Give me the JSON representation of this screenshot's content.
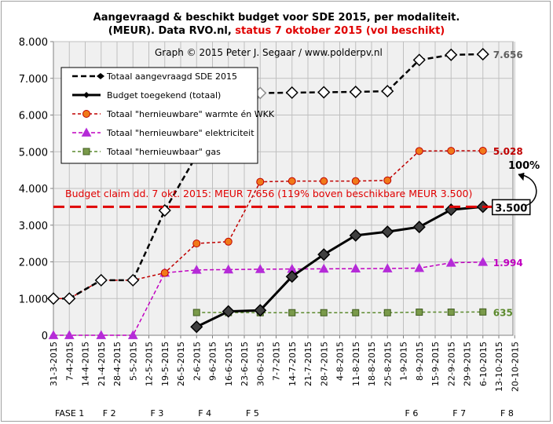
{
  "title": {
    "line1": "Aangevraagd & beschikt budget voor SDE 2015, per modaliteit.",
    "line2_prefix": "(MEUR).  Data RVO.nl,  ",
    "line2_status": "status 7 oktober 2015  (vol beschikt)"
  },
  "credit": "Graph  © 2015  Peter J. Segaar  /  www.polderpv.nl",
  "budget_claim_note": "Budget claim  dd. 7 okt. 2015:  MEUR 7.656  (119% boven beschikbare MEUR  3.500)",
  "percent_label": "100%",
  "colors": {
    "aangevraagd": "#000000",
    "toegekend": "#000000",
    "warmte": "#c00000",
    "warmte_fill": "#f07a1a",
    "elektriciteit": "#c000c0",
    "gas": "#5c8a2e",
    "gas_fill": "#7a9a4a",
    "claim_line": "#e00000",
    "gridline": "#bfbfbf",
    "plot_bg": "#f0f0f0"
  },
  "chart_data": {
    "type": "line",
    "ylim": [
      0,
      8000
    ],
    "yticks": [
      0,
      1000,
      2000,
      3000,
      4000,
      5000,
      6000,
      7000,
      8000
    ],
    "ytick_labels": [
      "0",
      "1.000",
      "2.000",
      "3.000",
      "4.000",
      "5.000",
      "6.000",
      "7.000",
      "8.000"
    ],
    "x_dates": [
      "2015-03-31",
      "2015-04-07",
      "2015-04-14",
      "2015-04-21",
      "2015-04-28",
      "2015-05-05",
      "2015-05-12",
      "2015-05-19",
      "2015-05-26",
      "2015-06-02",
      "2015-06-09",
      "2015-06-16",
      "2015-06-23",
      "2015-06-30",
      "2015-07-07",
      "2015-07-14",
      "2015-07-21",
      "2015-07-28",
      "2015-08-04",
      "2015-08-11",
      "2015-08-18",
      "2015-08-25",
      "2015-09-01",
      "2015-09-08",
      "2015-09-15",
      "2015-09-22",
      "2015-09-29",
      "2015-10-06",
      "2015-10-13",
      "2015-10-20"
    ],
    "x_labels": [
      "31-3-2015",
      "7-4-2015",
      "14-4-2015",
      "21-4-2015",
      "28-4-2015",
      "5-5-2015",
      "12-5-2015",
      "19-5-2015",
      "26-5-2015",
      "2-6-2015",
      "9-6-2015",
      "16-6-2015",
      "23-6-2015",
      "30-6-2015",
      "7-7-2015",
      "14-7-2015",
      "21-7-2015",
      "28-7-2015",
      "4-8-2015",
      "11-8-2015",
      "18-8-2015",
      "25-8-2015",
      "1-9-2015",
      "8-9-2015",
      "15-9-2015",
      "22-9-2015",
      "29-9-2015",
      "6-10-2015",
      "13-10-2015",
      "20-10-2015"
    ],
    "phases": [
      {
        "label": "FASE 1",
        "date": "2015-03-31"
      },
      {
        "label": "F 2",
        "date": "2015-04-21"
      },
      {
        "label": "F 3",
        "date": "2015-05-12"
      },
      {
        "label": "F 4",
        "date": "2015-06-02"
      },
      {
        "label": "F 5",
        "date": "2015-06-23"
      },
      {
        "label": "F 6",
        "date": "2015-09-01"
      },
      {
        "label": "F 7",
        "date": "2015-09-22"
      },
      {
        "label": "F 8",
        "date": "2015-10-13"
      }
    ],
    "reference_line": {
      "y": 3500
    },
    "series": [
      {
        "key": "aangevraagd",
        "name": "Totaal aangevraagd SDE 2015",
        "end_label": "7.656",
        "dates": [
          "2015-03-31",
          "2015-04-07",
          "2015-04-21",
          "2015-05-05",
          "2015-05-19",
          "2015-06-02",
          "2015-06-16",
          "2015-06-30",
          "2015-07-14",
          "2015-07-28",
          "2015-08-11",
          "2015-08-25",
          "2015-09-08",
          "2015-09-22",
          "2015-10-06"
        ],
        "values": [
          1000,
          1000,
          1500,
          1500,
          3400,
          4900,
          4930,
          6600,
          6610,
          6620,
          6630,
          6650,
          7500,
          7640,
          7656
        ]
      },
      {
        "key": "toegekend",
        "name": "Budget toegekend (totaal)",
        "end_label": "3.500",
        "dates": [
          "2015-06-02",
          "2015-06-16",
          "2015-06-30",
          "2015-07-14",
          "2015-07-28",
          "2015-08-11",
          "2015-08-25",
          "2015-09-08",
          "2015-09-22",
          "2015-10-06"
        ],
        "values": [
          230,
          650,
          680,
          1600,
          2200,
          2720,
          2820,
          2950,
          3420,
          3500
        ]
      },
      {
        "key": "warmte",
        "name": "Totaal \"hernieuwbare\" warmte én WKK",
        "end_label": "5.028",
        "dates": [
          "2015-03-31",
          "2015-04-07",
          "2015-04-21",
          "2015-05-05",
          "2015-05-19",
          "2015-06-02",
          "2015-06-16",
          "2015-06-30",
          "2015-07-14",
          "2015-07-28",
          "2015-08-11",
          "2015-08-25",
          "2015-09-08",
          "2015-09-22",
          "2015-10-06"
        ],
        "values": [
          1000,
          1000,
          1500,
          1500,
          1700,
          2500,
          2550,
          4180,
          4200,
          4200,
          4200,
          4220,
          5020,
          5025,
          5028
        ]
      },
      {
        "key": "elektriciteit",
        "name": "Totaal \"hernieuwbare\" elektriciteit",
        "end_label": "1.994",
        "dates": [
          "2015-03-31",
          "2015-04-07",
          "2015-04-21",
          "2015-05-05",
          "2015-05-19",
          "2015-06-02",
          "2015-06-16",
          "2015-06-30",
          "2015-07-14",
          "2015-07-28",
          "2015-08-11",
          "2015-08-25",
          "2015-09-08",
          "2015-09-22",
          "2015-10-06"
        ],
        "values": [
          0,
          0,
          0,
          0,
          1700,
          1780,
          1790,
          1800,
          1805,
          1810,
          1815,
          1820,
          1830,
          1975,
          1994
        ]
      },
      {
        "key": "gas",
        "name": "Totaal \"hernieuwbaar\" gas",
        "end_label": "635",
        "dates": [
          "2015-06-02",
          "2015-06-16",
          "2015-06-30",
          "2015-07-14",
          "2015-07-28",
          "2015-08-11",
          "2015-08-25",
          "2015-09-08",
          "2015-09-22",
          "2015-10-06"
        ],
        "values": [
          620,
          620,
          615,
          615,
          615,
          615,
          615,
          630,
          630,
          635
        ]
      }
    ]
  }
}
